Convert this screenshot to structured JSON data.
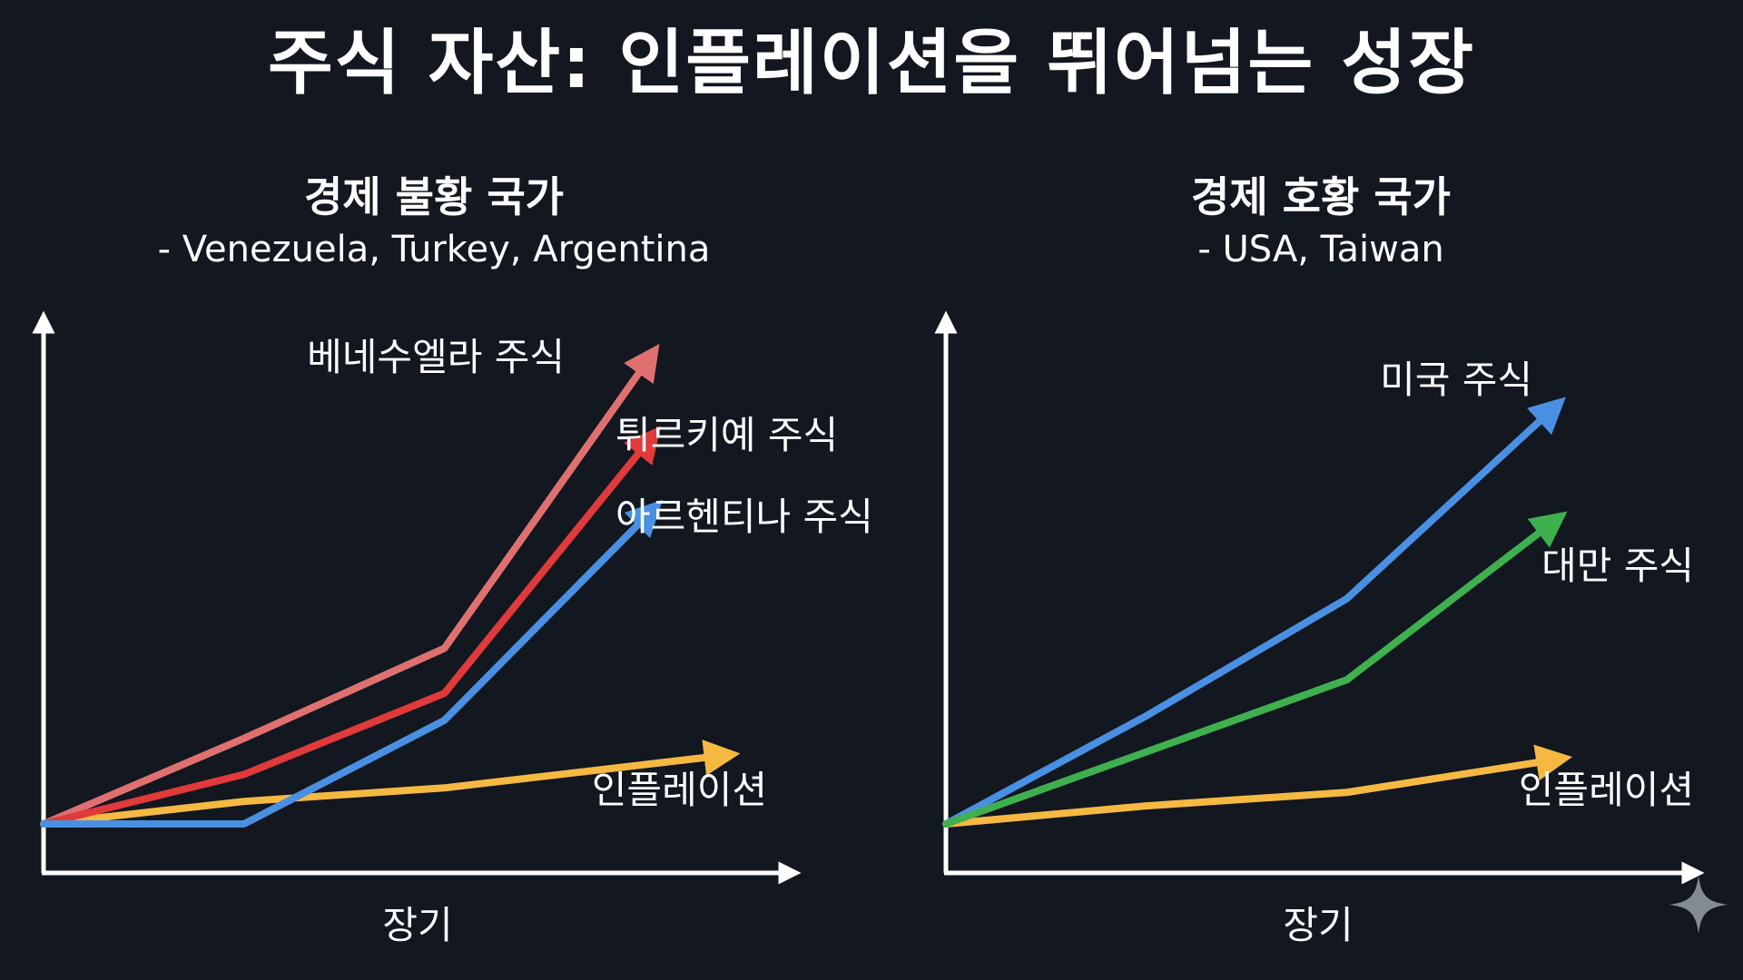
{
  "title": "주식 자산: 인플레이션을 뛰어넘는 성장",
  "colors": {
    "background": "#121720",
    "axis": "#ffffff",
    "venezuela": "#e07070",
    "turkey": "#e03a3a",
    "argentina": "#4a90e2",
    "inflation": "#f5b942",
    "usa": "#4a90e2",
    "taiwan": "#3fb04f"
  },
  "chart_data": [
    {
      "type": "line",
      "title": "경제 불황 국가",
      "subtitle": "- Venezuela, Turkey, Argentina",
      "xlabel": "장기",
      "ylabel": "",
      "x": [
        0,
        1,
        2,
        3
      ],
      "xlim": [
        0,
        3.85
      ],
      "ylim": [
        0,
        10.8
      ],
      "series": [
        {
          "name": "베네수엘라 주식",
          "color": "#e07070",
          "values": [
            0,
            1.9,
            3.9,
            10.2
          ]
        },
        {
          "name": "튀르키예 주식",
          "color": "#e03a3a",
          "values": [
            0,
            1.1,
            2.9,
            8.4
          ]
        },
        {
          "name": "아르헨티나 주식",
          "color": "#4a90e2",
          "values": [
            0,
            0,
            2.3,
            6.8
          ]
        },
        {
          "name": "인플레이션",
          "color": "#f5b942",
          "values": [
            0,
            0.5,
            0.8,
            1.5
          ],
          "x_last": 3.35
        }
      ]
    },
    {
      "type": "line",
      "title": "경제 호황 국가",
      "subtitle": "- USA, Taiwan",
      "xlabel": "장기",
      "ylabel": "",
      "x": [
        0,
        1,
        2,
        3
      ],
      "xlim": [
        0,
        3.85
      ],
      "ylim": [
        0,
        10.8
      ],
      "series": [
        {
          "name": "미국 주식",
          "color": "#4a90e2",
          "values": [
            0,
            2.4,
            5.0,
            9.1
          ]
        },
        {
          "name": "대만 주식",
          "color": "#3fb04f",
          "values": [
            0,
            1.6,
            3.2,
            6.6
          ]
        },
        {
          "name": "인플레이션",
          "color": "#f5b942",
          "values": [
            0,
            0.4,
            0.7,
            1.4
          ]
        }
      ]
    }
  ],
  "icons": {
    "watermark": "sparkle-icon"
  }
}
